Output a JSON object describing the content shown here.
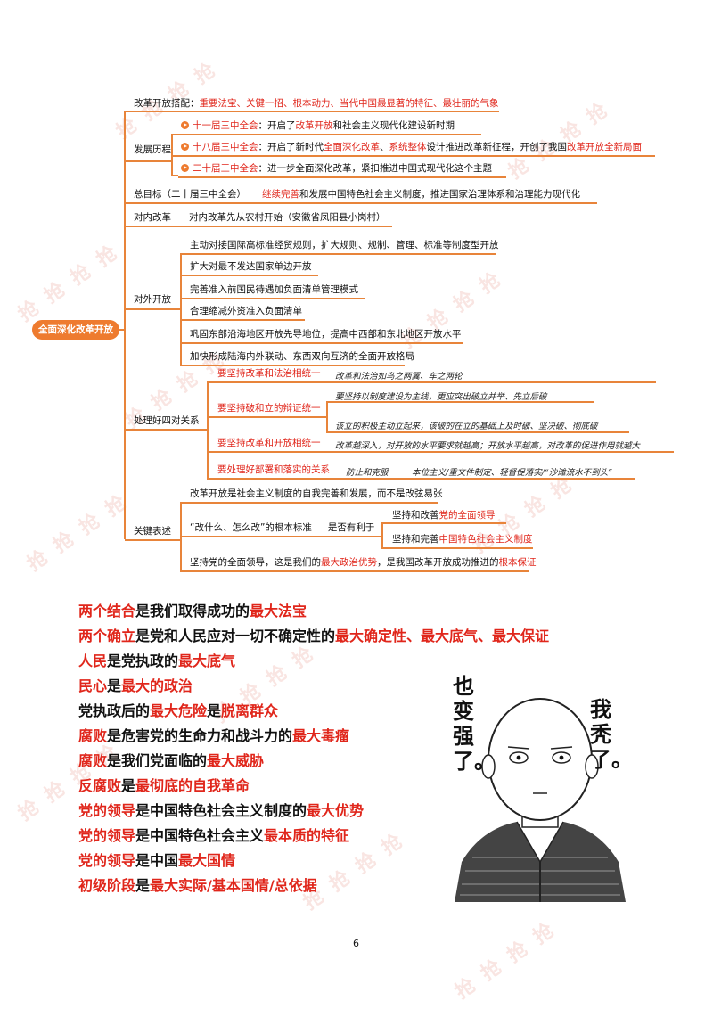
{
  "root_label": "全面深化改革开放",
  "branches": {
    "pairing": {
      "label": "改革开放搭配：",
      "text": "重要法宝、关键一招、根本动力、当代中国最显著的特征、最壮丽的气象"
    },
    "history": {
      "label": "发展历程",
      "items": [
        {
          "head": "十一届三中全会",
          "a": "：开启了",
          "b": "改革开放",
          "c": "和社会主义现代化建设新时期",
          "d": "",
          "e": "",
          "f": "",
          "g": ""
        },
        {
          "head": "十八届三中全会",
          "a": "：开启了新时代",
          "b": "全面深化改革",
          "c": "、",
          "d": "系统整体",
          "e": "设计推进改革新征程，开创了我国",
          "f": "改革开放全新局面",
          "g": ""
        },
        {
          "head": "二十届三中全会",
          "a": "：进一步全面深化改革，紧扣推进中国式现代化这个主题",
          "b": "",
          "c": "",
          "d": "",
          "e": "",
          "f": "",
          "g": ""
        }
      ]
    },
    "goal": {
      "label": "总目标（二十届三中全会）",
      "red": "继续完善",
      "rest": "和发展中国特色社会主义制度，推进国家治理体系和治理能力现代化"
    },
    "internal": {
      "label": "对内改革",
      "text": "对内改革先从农村开始（安徽省凤阳县小岗村）"
    },
    "external": {
      "label": "对外开放",
      "items": [
        "主动对接国际高标准经贸规则，扩大规则、规制、管理、标准等制度型开放",
        "扩大对最不发达国家单边开放",
        "完善准入前国民待遇加负面清单管理模式",
        "合理缩减外资准入负面清单",
        "巩固东部沿海地区开放先导地位，提高中西部和东北地区开放水平",
        "加快形成陆海内外联动、东西双向互济的全面开放格局"
      ]
    },
    "relations": {
      "label": "处理好四对关系",
      "items": [
        {
          "name": "要坚持改革和法治相统一",
          "notes": [
            "改革和法治如鸟之两翼、车之两轮"
          ]
        },
        {
          "name": "要坚持破和立的辩证统一",
          "notes": [
            "要坚持以制度建设为主线，更应突出破立并举、先立后破",
            "该立的积极主动立起来，该破的在立的基础上及时破、坚决破、彻底破"
          ]
        },
        {
          "name": "要坚持改革和开放相统一",
          "notes": [
            "改革越深入，对开放的水平要求就越高；开放水平越高，对改革的促进作用就越大"
          ]
        },
        {
          "name": "要处理好部署和落实的关系",
          "notes": [
            "防止和克服",
            "本位主义/重文件制定、轻督促落实/“沙滩流水不到头”"
          ]
        }
      ]
    },
    "key": {
      "label": "关键表述",
      "item1": "改革开放是社会主义制度的自我完善和发展，而不是改弦易张",
      "standard": "“改什么、怎么改”的根本标准",
      "conj": "是否有利于",
      "sub1a": "坚持和改善",
      "sub1b": "党的全面领导",
      "sub2a": "坚持和完善",
      "sub2b": "中国特色社会主义制度",
      "item3a": "坚持党的全面领导，这是我们的",
      "item3b": "最大政治优势",
      "item3c": "，是我国改革开放成功推进的",
      "item3d": "根本保证"
    }
  },
  "sentences": [
    {
      "a": "两个结合",
      "b": "是我们取得成功的",
      "c": "最大法宝",
      "d": "",
      "e": ""
    },
    {
      "a": "两个确立",
      "b": "是党和人民应对一切不确定性的",
      "c": "最大确定性、最大底气、最大保证",
      "d": "",
      "e": ""
    },
    {
      "a": "人民",
      "b": "是党执政的",
      "c": "最大底气",
      "d": "",
      "e": ""
    },
    {
      "a": "民心",
      "b": "是",
      "c": "最大的政治",
      "d": "",
      "e": ""
    },
    {
      "a": "",
      "b": "党执政后的",
      "c": "最大危险",
      "d": "是",
      "e": "脱离群众"
    },
    {
      "a": "腐败",
      "b": "是危害党的生命力和战斗力的",
      "c": "最大毒瘤",
      "d": "",
      "e": ""
    },
    {
      "a": "腐败",
      "b": "是我们党面临的",
      "c": "最大威胁",
      "d": "",
      "e": ""
    },
    {
      "a": "反腐败",
      "b": "是",
      "c": "最彻底的自我革命",
      "d": "",
      "e": ""
    },
    {
      "a": "党的领导",
      "b": "是中国特色社会主义制度的",
      "c": "最大优势",
      "d": "",
      "e": ""
    },
    {
      "a": "党的领导",
      "b": "是中国特色社会主义",
      "c": "最本质的特征",
      "d": "",
      "e": ""
    },
    {
      "a": "党的领导",
      "b": "是中国",
      "c": "最大国情",
      "d": "",
      "e": ""
    },
    {
      "a": "初级阶段",
      "b": "是",
      "c": "最大实际/基本国情/总依据",
      "d": "",
      "e": ""
    }
  ],
  "comic": {
    "bubble_left": "也变强了。",
    "bubble_right": "我秃了。"
  },
  "watermark": "抢 抢 抢 抢",
  "page_number": "6",
  "colors": {
    "accent": "#ee7b2f",
    "red": "#e0261b"
  }
}
